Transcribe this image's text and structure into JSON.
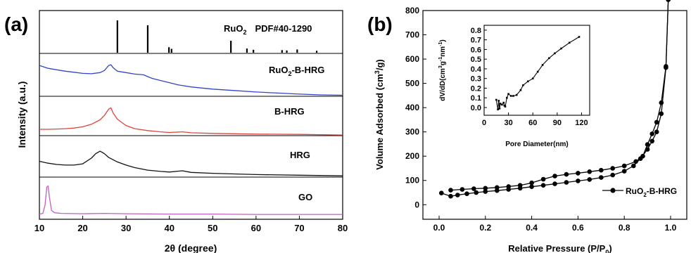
{
  "chart_data": [
    {
      "panel_label": "(a)",
      "type": "line",
      "xlabel": "2θ (degree)",
      "ylabel": "Intensity (a.u.)",
      "xlim": [
        10,
        80
      ],
      "xticks": [
        "10",
        "20",
        "30",
        "40",
        "50",
        "60",
        "70",
        "80"
      ],
      "reference": {
        "label_main": "RuO",
        "label_sub": "2",
        "label_rest": "PDF#40-1290",
        "peaks": [
          {
            "x": 28.0,
            "h": 1.0
          },
          {
            "x": 35.0,
            "h": 0.85
          },
          {
            "x": 39.9,
            "h": 0.17
          },
          {
            "x": 40.5,
            "h": 0.12
          },
          {
            "x": 54.2,
            "h": 0.37
          },
          {
            "x": 57.9,
            "h": 0.13
          },
          {
            "x": 59.4,
            "h": 0.09
          },
          {
            "x": 66.0,
            "h": 0.08
          },
          {
            "x": 67.1,
            "h": 0.07
          },
          {
            "x": 69.5,
            "h": 0.1
          },
          {
            "x": 74.0,
            "h": 0.06
          }
        ]
      },
      "series": [
        {
          "name": "RuO2-B-HRG",
          "label_main": "RuO",
          "label_sub": "2",
          "label_rest": "-B-HRG",
          "color": "#3344cc",
          "points": [
            [
              10,
              0.86
            ],
            [
              12,
              0.78
            ],
            [
              14,
              0.74
            ],
            [
              16,
              0.7
            ],
            [
              18,
              0.67
            ],
            [
              20,
              0.64
            ],
            [
              22,
              0.63
            ],
            [
              24,
              0.66
            ],
            [
              25,
              0.72
            ],
            [
              26,
              0.86
            ],
            [
              26.5,
              0.88
            ],
            [
              27,
              0.8
            ],
            [
              28,
              0.7
            ],
            [
              30,
              0.66
            ],
            [
              32,
              0.62
            ],
            [
              34,
              0.6
            ],
            [
              35,
              0.55
            ],
            [
              36,
              0.5
            ],
            [
              38,
              0.44
            ],
            [
              40,
              0.38
            ],
            [
              42,
              0.32
            ],
            [
              45,
              0.26
            ],
            [
              50,
              0.2
            ],
            [
              55,
              0.16
            ],
            [
              60,
              0.12
            ],
            [
              65,
              0.09
            ],
            [
              70,
              0.06
            ],
            [
              75,
              0.04
            ],
            [
              80,
              0.03
            ]
          ]
        },
        {
          "name": "B-HRG",
          "label_main": "B-HRG",
          "label_sub": "",
          "label_rest": "",
          "color": "#e0443a",
          "points": [
            [
              10,
              0.2
            ],
            [
              12,
              0.2
            ],
            [
              14,
              0.21
            ],
            [
              16,
              0.22
            ],
            [
              18,
              0.24
            ],
            [
              20,
              0.28
            ],
            [
              22,
              0.36
            ],
            [
              24,
              0.5
            ],
            [
              25,
              0.64
            ],
            [
              26,
              0.84
            ],
            [
              26.5,
              0.88
            ],
            [
              27,
              0.72
            ],
            [
              28,
              0.52
            ],
            [
              30,
              0.32
            ],
            [
              32,
              0.22
            ],
            [
              35,
              0.16
            ],
            [
              38,
              0.12
            ],
            [
              40,
              0.1
            ],
            [
              43,
              0.12
            ],
            [
              45,
              0.09
            ],
            [
              50,
              0.07
            ],
            [
              60,
              0.05
            ],
            [
              70,
              0.04
            ],
            [
              80,
              0.02
            ]
          ]
        },
        {
          "name": "HRG",
          "label_main": "HRG",
          "label_sub": "",
          "label_rest": "",
          "color": "#111111",
          "points": [
            [
              10,
              0.5
            ],
            [
              12,
              0.44
            ],
            [
              14,
              0.4
            ],
            [
              16,
              0.38
            ],
            [
              18,
              0.38
            ],
            [
              20,
              0.42
            ],
            [
              22,
              0.6
            ],
            [
              23,
              0.74
            ],
            [
              24,
              0.82
            ],
            [
              25,
              0.74
            ],
            [
              26,
              0.62
            ],
            [
              28,
              0.48
            ],
            [
              30,
              0.38
            ],
            [
              32,
              0.3
            ],
            [
              35,
              0.22
            ],
            [
              38,
              0.18
            ],
            [
              40,
              0.16
            ],
            [
              43,
              0.2
            ],
            [
              45,
              0.15
            ],
            [
              50,
              0.12
            ],
            [
              55,
              0.1
            ],
            [
              60,
              0.08
            ],
            [
              70,
              0.06
            ],
            [
              80,
              0.04
            ]
          ]
        },
        {
          "name": "GO",
          "label_main": "GO",
          "label_sub": "",
          "label_rest": "",
          "color": "#c060c0",
          "points": [
            [
              10,
              0.03
            ],
            [
              10.8,
              0.05
            ],
            [
              11.3,
              0.3
            ],
            [
              11.7,
              0.85
            ],
            [
              12.0,
              0.88
            ],
            [
              12.3,
              0.55
            ],
            [
              12.8,
              0.14
            ],
            [
              13.5,
              0.07
            ],
            [
              15,
              0.05
            ],
            [
              20,
              0.04
            ],
            [
              25,
              0.05
            ],
            [
              30,
              0.04
            ],
            [
              40,
              0.03
            ],
            [
              50,
              0.03
            ],
            [
              60,
              0.02
            ],
            [
              70,
              0.02
            ],
            [
              80,
              0.02
            ]
          ]
        }
      ]
    },
    {
      "panel_label": "(b)",
      "type": "line",
      "xlabel": "Relative Pressure (P/P0)",
      "xlabel_main": "Relative Pressure (P/P",
      "xlabel_sub": "0",
      "xlabel_end": ")",
      "ylabel_pre": "Volume Adsorbed (cm",
      "ylabel_sup": "3",
      "ylabel_post": "/g)",
      "xlim": [
        -0.07,
        1.07
      ],
      "ylim": [
        -60,
        800
      ],
      "xticks": [
        0.0,
        0.2,
        0.4,
        0.6,
        0.8,
        1.0
      ],
      "xtick_labels": [
        "0.0",
        "0.2",
        "0.4",
        "0.6",
        "0.8",
        "1.0"
      ],
      "yticks": [
        0,
        100,
        200,
        300,
        400,
        500,
        600,
        700,
        800
      ],
      "ytick_labels": [
        "0",
        "100",
        "200",
        "300",
        "400",
        "500",
        "600",
        "700",
        "800"
      ],
      "legend": {
        "main": "RuO",
        "sub": "2",
        "rest": "-B-HRG",
        "position": "right"
      },
      "series": [
        {
          "name": "adsorption",
          "points": [
            [
              0.01,
              48
            ],
            [
              0.05,
              35
            ],
            [
              0.08,
              40
            ],
            [
              0.12,
              45
            ],
            [
              0.16,
              50
            ],
            [
              0.2,
              54
            ],
            [
              0.25,
              58
            ],
            [
              0.3,
              63
            ],
            [
              0.35,
              68
            ],
            [
              0.4,
              74
            ],
            [
              0.45,
              80
            ],
            [
              0.5,
              86
            ],
            [
              0.55,
              92
            ],
            [
              0.6,
              98
            ],
            [
              0.65,
              104
            ],
            [
              0.7,
              112
            ],
            [
              0.75,
              122
            ],
            [
              0.8,
              138
            ],
            [
              0.84,
              160
            ],
            [
              0.87,
              190
            ],
            [
              0.9,
              228
            ],
            [
              0.92,
              262
            ],
            [
              0.94,
              300
            ],
            [
              0.96,
              375
            ],
            [
              0.98,
              565
            ],
            [
              0.99,
              845
            ]
          ]
        },
        {
          "name": "desorption",
          "points": [
            [
              0.99,
              845
            ],
            [
              0.98,
              570
            ],
            [
              0.96,
              420
            ],
            [
              0.94,
              340
            ],
            [
              0.92,
              292
            ],
            [
              0.9,
              248
            ],
            [
              0.88,
              200
            ],
            [
              0.85,
              178
            ],
            [
              0.8,
              160
            ],
            [
              0.75,
              150
            ],
            [
              0.7,
              142
            ],
            [
              0.65,
              136
            ],
            [
              0.6,
              130
            ],
            [
              0.55,
              125
            ],
            [
              0.5,
              118
            ],
            [
              0.45,
              105
            ],
            [
              0.4,
              90
            ],
            [
              0.35,
              80
            ],
            [
              0.3,
              75
            ],
            [
              0.25,
              71
            ],
            [
              0.2,
              68
            ],
            [
              0.15,
              66
            ],
            [
              0.1,
              63
            ],
            [
              0.05,
              60
            ]
          ]
        }
      ],
      "inset": {
        "xlabel": "Pore Diameter(nm)",
        "ylabel": "dV/dD(cm3g-1nm-1)",
        "xlim": [
          0,
          130
        ],
        "ylim": [
          -0.08,
          0.85
        ],
        "xticks": [
          0,
          30,
          60,
          90,
          120
        ],
        "xtick_labels": [
          "0",
          "30",
          "60",
          "90",
          "120"
        ],
        "yticks": [
          0.0,
          0.1,
          0.2,
          0.3,
          0.4,
          0.5,
          0.6,
          0.7,
          0.8
        ],
        "ytick_labels": [
          "0.0",
          "0.1",
          "0.2",
          "0.3",
          "0.4",
          "0.5",
          "0.6",
          "0.7",
          "0.8"
        ],
        "points": [
          [
            15,
            0.08
          ],
          [
            17,
            -0.02
          ],
          [
            18,
            0.07
          ],
          [
            19,
            -0.01
          ],
          [
            20,
            0.04
          ],
          [
            22,
            0.03
          ],
          [
            24,
            0.05
          ],
          [
            25,
            0.02
          ],
          [
            26,
            0.01
          ],
          [
            28,
            0.1
          ],
          [
            30,
            0.14
          ],
          [
            33,
            0.12
          ],
          [
            36,
            0.12
          ],
          [
            40,
            0.13
          ],
          [
            45,
            0.18
          ],
          [
            48,
            0.23
          ],
          [
            54,
            0.27
          ],
          [
            60,
            0.3
          ],
          [
            66,
            0.37
          ],
          [
            72,
            0.44
          ],
          [
            80,
            0.51
          ],
          [
            87,
            0.56
          ],
          [
            95,
            0.61
          ],
          [
            105,
            0.67
          ],
          [
            117,
            0.73
          ]
        ]
      }
    }
  ]
}
